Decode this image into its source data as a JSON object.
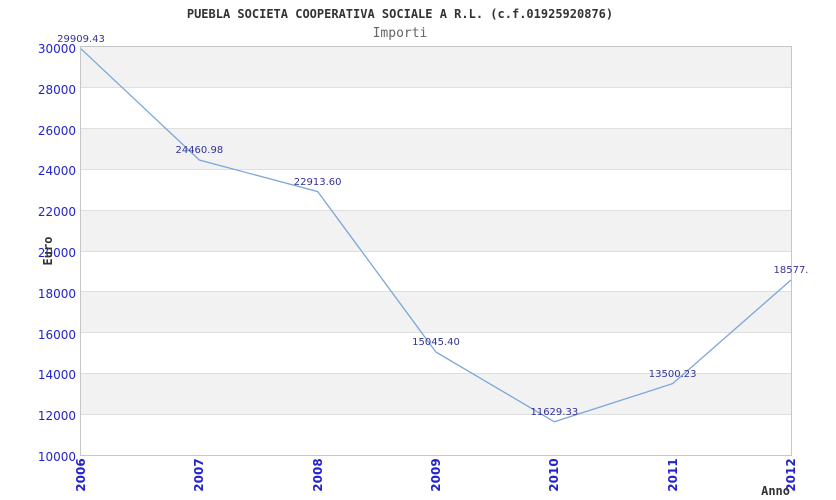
{
  "header": {
    "title": "PUEBLA SOCIETA COOPERATIVA SOCIALE A R.L. (c.f.01925920876)",
    "subtitle": "Importi"
  },
  "chart_data": {
    "type": "line",
    "title": "PUEBLA SOCIETA COOPERATIVA SOCIALE A R.L. (c.f.01925920876)",
    "subtitle": "Importi",
    "xlabel": "Anno",
    "ylabel": "Euro",
    "categories": [
      "2006",
      "2007",
      "2008",
      "2009",
      "2010",
      "2011",
      "2012"
    ],
    "series": [
      {
        "name": "Importi",
        "values": [
          29909.43,
          24460.98,
          22913.6,
          15045.4,
          11629.33,
          13500.23,
          18577.0
        ],
        "point_labels": [
          "29909.43",
          "24460.98",
          "22913.60",
          "15045.40",
          "11629.33",
          "13500.23",
          "18577."
        ]
      }
    ],
    "ylim": [
      10000,
      30000
    ],
    "yticks": [
      10000,
      12000,
      14000,
      16000,
      18000,
      20000,
      22000,
      24000,
      26000,
      28000,
      30000
    ],
    "grid": "horizontal-bands",
    "legend": "none",
    "colors": {
      "line": "#7BA7DA",
      "point_label": "#333399",
      "tick_label": "#2323CC",
      "band_fill": "#F2F2F2",
      "gridline": "#DFDFDF",
      "plot_border": "#C6C6C6",
      "title": "#333333",
      "subtitle": "#666666",
      "axis_title": "#333333"
    }
  }
}
